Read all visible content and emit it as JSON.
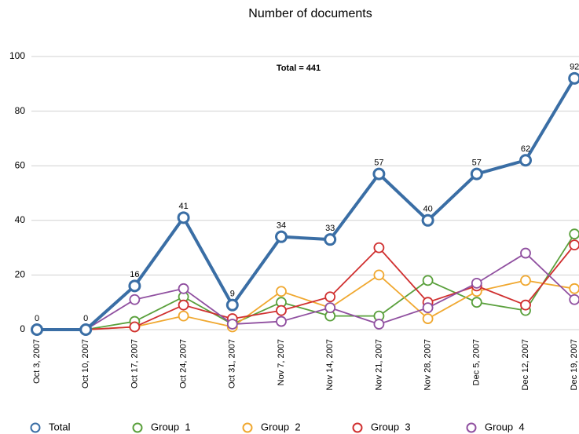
{
  "chart_data": {
    "type": "line",
    "title": "Number of documents",
    "annotation": "Total = 441",
    "categories": [
      "Oct 3, 2007",
      "Oct 10, 2007",
      "Oct 17, 2007",
      "Oct 24, 2007",
      "Oct 31, 2007",
      "Nov 7, 2007",
      "Nov 14, 2007",
      "Nov 21, 2007",
      "Nov 28, 2007",
      "Dec 5, 2007",
      "Dec 12, 2007",
      "Dec 19, 2007"
    ],
    "series": [
      {
        "name": "Total",
        "color": "#3a6ea5",
        "values": [
          0,
          0,
          16,
          41,
          9,
          34,
          33,
          57,
          40,
          57,
          62,
          92
        ]
      },
      {
        "name": "Group  1",
        "color": "#5aa03c",
        "values": [
          0,
          0,
          3,
          12,
          2,
          10,
          5,
          5,
          18,
          10,
          7,
          35
        ]
      },
      {
        "name": "Group  2",
        "color": "#f0a830",
        "values": [
          0,
          0,
          1,
          5,
          1,
          14,
          8,
          20,
          4,
          14,
          18,
          15
        ]
      },
      {
        "name": "Group  3",
        "color": "#d03030",
        "values": [
          0,
          0,
          1,
          9,
          4,
          7,
          12,
          30,
          10,
          16,
          9,
          31
        ]
      },
      {
        "name": "Group  4",
        "color": "#9050a0",
        "values": [
          0,
          0,
          11,
          15,
          2,
          3,
          8,
          2,
          8,
          17,
          28,
          11
        ]
      }
    ],
    "ylim": [
      0,
      100
    ],
    "yticks": [
      0,
      20,
      40,
      60,
      80,
      100
    ],
    "grid": true,
    "legend": "bottom"
  }
}
